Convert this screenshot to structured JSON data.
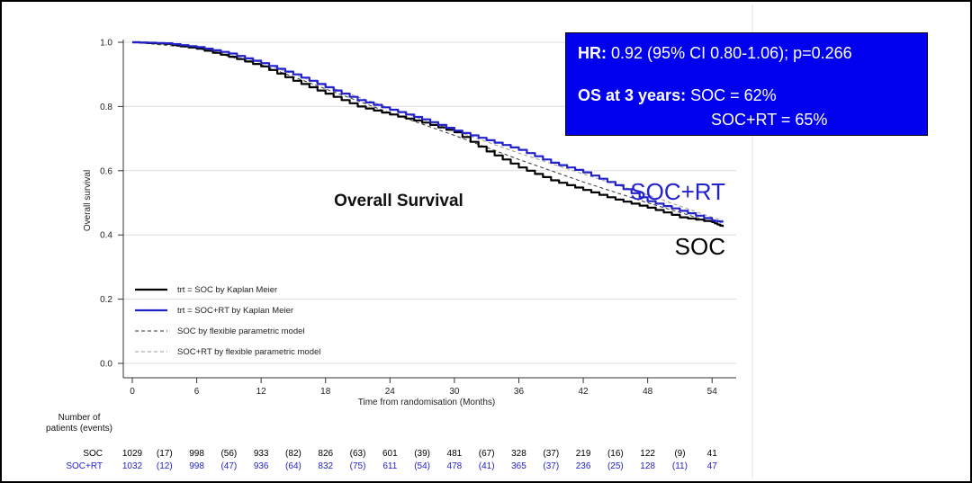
{
  "colors": {
    "soc": "#000000",
    "socrt": "#2222cc",
    "box_bg": "#0000ee"
  },
  "chart_data": {
    "type": "line",
    "title": "Overall Survival",
    "xlabel": "Time from randomisation (Months)",
    "ylabel": "Overall survival",
    "xlim": [
      0,
      56
    ],
    "ylim": [
      0,
      1.0
    ],
    "x_ticks": [
      0,
      6,
      12,
      18,
      24,
      30,
      36,
      42,
      48,
      54
    ],
    "y_ticks": [
      0.0,
      0.2,
      0.4,
      0.6,
      0.8,
      1.0
    ],
    "y_tick_labels": [
      "0.0",
      "0.2",
      "0.4",
      "0.6",
      "0.8",
      "1.0"
    ],
    "series": [
      {
        "name": "trt = SOC by Kaplan Meier",
        "style": "solid",
        "color": "#000000",
        "x": [
          0,
          3,
          6,
          9,
          12,
          15,
          18,
          21,
          24,
          27,
          30,
          33,
          36,
          39,
          42,
          45,
          48,
          51,
          54,
          55
        ],
        "y": [
          1.0,
          0.995,
          0.98,
          0.955,
          0.925,
          0.88,
          0.84,
          0.8,
          0.775,
          0.75,
          0.72,
          0.66,
          0.61,
          0.57,
          0.54,
          0.51,
          0.485,
          0.455,
          0.44,
          0.425
        ]
      },
      {
        "name": "trt = SOC+RT by Kaplan Meier",
        "style": "solid",
        "color": "#2222cc",
        "x": [
          0,
          3,
          6,
          9,
          12,
          15,
          18,
          21,
          24,
          27,
          30,
          33,
          36,
          39,
          42,
          45,
          48,
          51,
          54,
          55
        ],
        "y": [
          1.0,
          0.997,
          0.985,
          0.965,
          0.935,
          0.9,
          0.86,
          0.82,
          0.79,
          0.76,
          0.725,
          0.695,
          0.665,
          0.625,
          0.595,
          0.555,
          0.505,
          0.475,
          0.445,
          0.44
        ]
      },
      {
        "name": "SOC by flexible parametric model",
        "style": "dashed",
        "color": "#333333",
        "x": [
          0,
          6,
          12,
          18,
          24,
          30,
          36,
          42,
          48,
          54,
          55
        ],
        "y": [
          1.0,
          0.982,
          0.93,
          0.855,
          0.78,
          0.71,
          0.635,
          0.565,
          0.5,
          0.44,
          0.43
        ]
      },
      {
        "name": "SOC+RT by flexible parametric model",
        "style": "dashed",
        "color": "#999999",
        "x": [
          0,
          6,
          12,
          18,
          24,
          30,
          36,
          42,
          48,
          54,
          55
        ],
        "y": [
          1.0,
          0.985,
          0.937,
          0.865,
          0.795,
          0.725,
          0.655,
          0.59,
          0.525,
          0.455,
          0.445
        ]
      }
    ],
    "curve_labels": {
      "socrt": "SOC+RT",
      "soc": "SOC"
    },
    "annotation": {
      "hr_label": "HR:",
      "hr_text": "0.92 (95% CI 0.80-1.06); p=0.266",
      "os_label": "OS at 3 years:",
      "os_soc": "SOC = 62%",
      "os_socrt": "SOC+RT = 65%"
    },
    "risk_table": {
      "header_line1": "Number of",
      "header_line2": "patients (events)",
      "rows": [
        {
          "label": "SOC",
          "color": "#000000",
          "values": [
            "1029",
            "(17)",
            "998",
            "(56)",
            "933",
            "(82)",
            "826",
            "(63)",
            "601",
            "(39)",
            "481",
            "(67)",
            "328",
            "(37)",
            "219",
            "(16)",
            "122",
            "(9)",
            "41"
          ]
        },
        {
          "label": "SOC+RT",
          "color": "#2222cc",
          "values": [
            "1032",
            "(12)",
            "998",
            "(47)",
            "936",
            "(64)",
            "832",
            "(75)",
            "611",
            "(54)",
            "478",
            "(41)",
            "365",
            "(37)",
            "236",
            "(25)",
            "128",
            "(11)",
            "47"
          ]
        }
      ]
    }
  }
}
